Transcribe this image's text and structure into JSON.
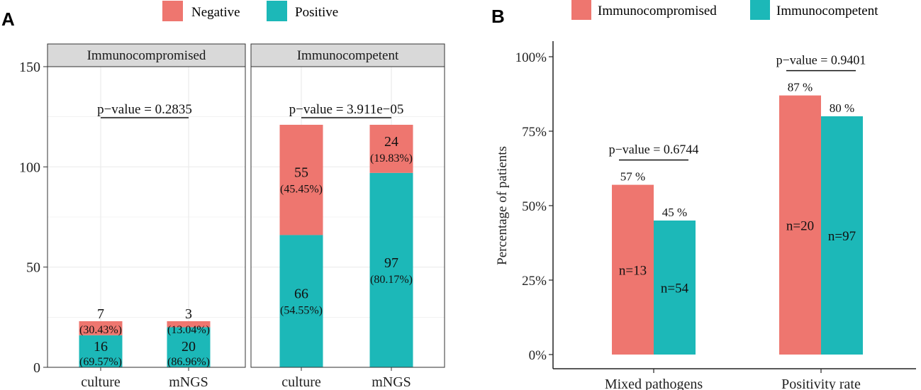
{
  "colors": {
    "negative": "#EE766F",
    "positive": "#1CB8B8",
    "immunocompromised": "#EE766F",
    "immunocompetent": "#1CB8B8",
    "strip": "#D9D9D9",
    "grid": "#EBEBEB"
  },
  "chart_data": [
    {
      "panel": "A",
      "type": "bar",
      "stacked": true,
      "legend": [
        "Negative",
        "Positive"
      ],
      "facets": [
        "Immunocompromised",
        "Immunocompetent"
      ],
      "categories": [
        "culture",
        "mNGS"
      ],
      "ylim": [
        0,
        150
      ],
      "yticks": [
        "0",
        "50",
        "100",
        "150"
      ],
      "groups": [
        {
          "facet": "Immunocompromised",
          "pvalue": "p−value = 0.2835",
          "bars": [
            {
              "category": "culture",
              "positive": 16,
              "negative": 7,
              "pos_count": "16",
              "pos_pct": "(69.57%)",
              "neg_count": "7",
              "neg_pct": "(30.43%)"
            },
            {
              "category": "mNGS",
              "positive": 20,
              "negative": 3,
              "pos_count": "20",
              "pos_pct": "(86.96%)",
              "neg_count": "3",
              "neg_pct": "(13.04%)"
            }
          ]
        },
        {
          "facet": "Immunocompetent",
          "pvalue": "p−value = 3.911e−05",
          "bars": [
            {
              "category": "culture",
              "positive": 66,
              "negative": 55,
              "pos_count": "66",
              "pos_pct": "(54.55%)",
              "neg_count": "55",
              "neg_pct": "(45.45%)"
            },
            {
              "category": "mNGS",
              "positive": 97,
              "negative": 24,
              "pos_count": "97",
              "pos_pct": "(80.17%)",
              "neg_count": "24",
              "neg_pct": "(19.83%)"
            }
          ]
        }
      ]
    },
    {
      "panel": "B",
      "type": "bar",
      "legend": [
        "Immunocompromised",
        "Immunocompetent"
      ],
      "categories": [
        "Mixed pathogens",
        "Positivity rate"
      ],
      "ylabel": "Percentage of patients",
      "ylim": [
        0,
        100
      ],
      "yticks": [
        "0%",
        "25%",
        "50%",
        "75%",
        "100%"
      ],
      "series": [
        {
          "name": "Immunocompromised",
          "values": [
            57,
            87
          ],
          "labels": [
            "57 %",
            "87 %"
          ],
          "n": [
            "n=13",
            "n=20"
          ]
        },
        {
          "name": "Immunocompetent",
          "values": [
            45,
            80
          ],
          "labels": [
            "45 %",
            "80 %"
          ],
          "n": [
            "n=54",
            "n=97"
          ]
        }
      ],
      "pvalues": [
        "p−value = 0.6744",
        "p−value = 0.9401"
      ]
    }
  ]
}
